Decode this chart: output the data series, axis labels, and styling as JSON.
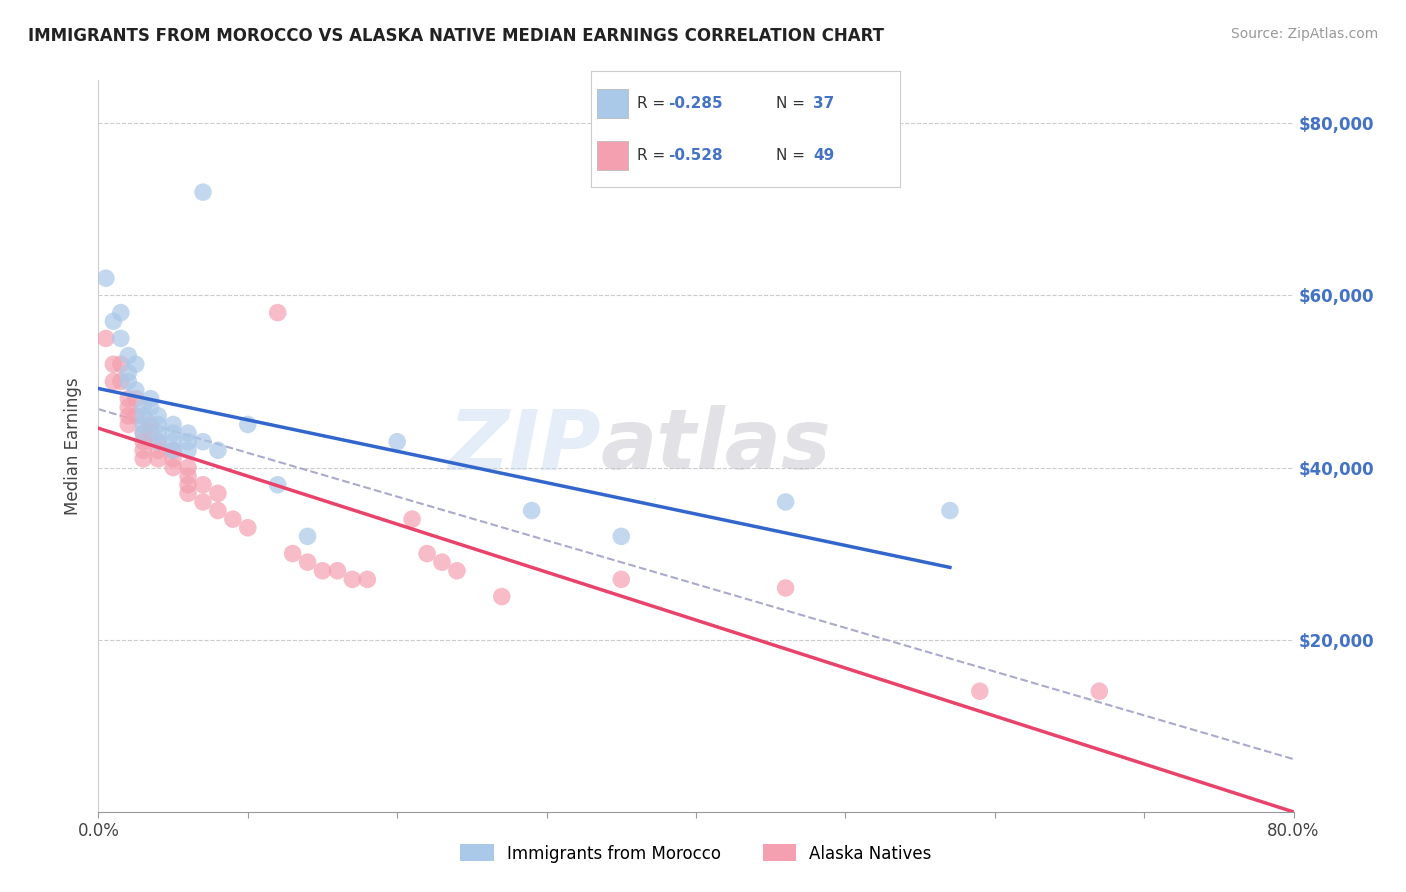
{
  "title": "IMMIGRANTS FROM MOROCCO VS ALASKA NATIVE MEDIAN EARNINGS CORRELATION CHART",
  "source": "Source: ZipAtlas.com",
  "xlabel": "",
  "ylabel": "Median Earnings",
  "xlim": [
    0.0,
    0.8
  ],
  "ylim": [
    0,
    85000
  ],
  "xticks": [
    0.0,
    0.1,
    0.2,
    0.3,
    0.4,
    0.5,
    0.6,
    0.7,
    0.8
  ],
  "xticklabels": [
    "0.0%",
    "",
    "",
    "",
    "",
    "",
    "",
    "",
    "80.0%"
  ],
  "yticks": [
    0,
    20000,
    40000,
    60000,
    80000
  ],
  "yticklabels": [
    "",
    "$20,000",
    "$40,000",
    "$60,000",
    "$80,000"
  ],
  "legend_r1": "-0.285",
  "legend_n1": "37",
  "legend_r2": "-0.528",
  "legend_n2": "49",
  "blue_color": "#aac8e8",
  "pink_color": "#f4a0b0",
  "blue_line_color": "#3366cc",
  "pink_line_color": "#e8436a",
  "dashed_line_color": "#aaaacc",
  "blue_scatter": [
    [
      0.005,
      62000
    ],
    [
      0.01,
      57000
    ],
    [
      0.015,
      58000
    ],
    [
      0.015,
      55000
    ],
    [
      0.02,
      53000
    ],
    [
      0.02,
      51000
    ],
    [
      0.02,
      50000
    ],
    [
      0.025,
      52000
    ],
    [
      0.025,
      49000
    ],
    [
      0.03,
      47000
    ],
    [
      0.03,
      46000
    ],
    [
      0.03,
      45000
    ],
    [
      0.03,
      44000
    ],
    [
      0.035,
      48000
    ],
    [
      0.035,
      47000
    ],
    [
      0.04,
      46000
    ],
    [
      0.04,
      45000
    ],
    [
      0.04,
      44000
    ],
    [
      0.04,
      43000
    ],
    [
      0.05,
      45000
    ],
    [
      0.05,
      44000
    ],
    [
      0.05,
      43000
    ],
    [
      0.05,
      42000
    ],
    [
      0.06,
      44000
    ],
    [
      0.06,
      43000
    ],
    [
      0.06,
      42000
    ],
    [
      0.07,
      72000
    ],
    [
      0.07,
      43000
    ],
    [
      0.08,
      42000
    ],
    [
      0.1,
      45000
    ],
    [
      0.12,
      38000
    ],
    [
      0.14,
      32000
    ],
    [
      0.2,
      43000
    ],
    [
      0.29,
      35000
    ],
    [
      0.35,
      32000
    ],
    [
      0.46,
      36000
    ],
    [
      0.57,
      35000
    ]
  ],
  "pink_scatter": [
    [
      0.005,
      55000
    ],
    [
      0.01,
      52000
    ],
    [
      0.01,
      50000
    ],
    [
      0.015,
      52000
    ],
    [
      0.015,
      50000
    ],
    [
      0.02,
      48000
    ],
    [
      0.02,
      47000
    ],
    [
      0.02,
      46000
    ],
    [
      0.02,
      45000
    ],
    [
      0.025,
      48000
    ],
    [
      0.025,
      46000
    ],
    [
      0.03,
      44000
    ],
    [
      0.03,
      43000
    ],
    [
      0.03,
      42000
    ],
    [
      0.03,
      41000
    ],
    [
      0.035,
      45000
    ],
    [
      0.035,
      44000
    ],
    [
      0.04,
      43000
    ],
    [
      0.04,
      42000
    ],
    [
      0.04,
      41000
    ],
    [
      0.05,
      42000
    ],
    [
      0.05,
      41000
    ],
    [
      0.05,
      40000
    ],
    [
      0.06,
      40000
    ],
    [
      0.06,
      39000
    ],
    [
      0.06,
      38000
    ],
    [
      0.06,
      37000
    ],
    [
      0.07,
      38000
    ],
    [
      0.07,
      36000
    ],
    [
      0.08,
      37000
    ],
    [
      0.08,
      35000
    ],
    [
      0.09,
      34000
    ],
    [
      0.1,
      33000
    ],
    [
      0.12,
      58000
    ],
    [
      0.13,
      30000
    ],
    [
      0.14,
      29000
    ],
    [
      0.15,
      28000
    ],
    [
      0.16,
      28000
    ],
    [
      0.17,
      27000
    ],
    [
      0.18,
      27000
    ],
    [
      0.21,
      34000
    ],
    [
      0.22,
      30000
    ],
    [
      0.23,
      29000
    ],
    [
      0.24,
      28000
    ],
    [
      0.27,
      25000
    ],
    [
      0.35,
      27000
    ],
    [
      0.46,
      26000
    ],
    [
      0.59,
      14000
    ],
    [
      0.67,
      14000
    ]
  ],
  "background_color": "#ffffff",
  "grid_color": "#cccccc",
  "title_color": "#222222",
  "right_axis_tick_color": "#4472c4",
  "blue_line_xmax": 0.57,
  "pink_line_xmax": 0.8,
  "dashed_line_xmax": 0.8
}
